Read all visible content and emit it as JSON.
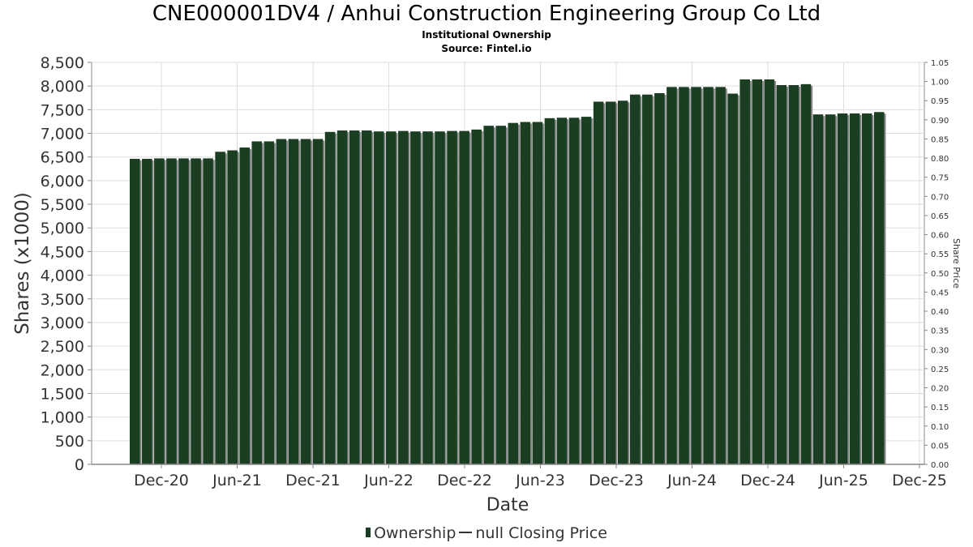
{
  "chart_data": {
    "type": "bar",
    "title": "CNE000001DV4 / Anhui Construction Engineering Group Co Ltd",
    "subtitle": [
      "Institutional Ownership",
      "Source: Fintel.io"
    ],
    "xlabel": "Date",
    "ylabel": "Shares (x1000)",
    "y2label": "Share Price",
    "ylim": [
      0,
      8500
    ],
    "y2lim": [
      0,
      1.05
    ],
    "yticks": [
      0,
      500,
      1000,
      1500,
      2000,
      2500,
      3000,
      3500,
      4000,
      4500,
      5000,
      5500,
      6000,
      6500,
      7000,
      7500,
      8000,
      8500
    ],
    "ytick_labels": [
      "0",
      "500",
      "1,000",
      "1,500",
      "2,000",
      "2,500",
      "3,000",
      "3,500",
      "4,000",
      "4,500",
      "5,000",
      "5,500",
      "6,000",
      "6,500",
      "7,000",
      "7,500",
      "8,000",
      "8,500"
    ],
    "y2ticks": [
      "0.00",
      "0.05",
      "0.10",
      "0.15",
      "0.20",
      "0.25",
      "0.30",
      "0.35",
      "0.40",
      "0.45",
      "0.50",
      "0.55",
      "0.60",
      "0.65",
      "0.70",
      "0.75",
      "0.80",
      "0.85",
      "0.90",
      "0.95",
      "1.00",
      "1.05"
    ],
    "xticks": [
      "Dec-20",
      "Jun-21",
      "Dec-21",
      "Jun-22",
      "Dec-22",
      "Jun-23",
      "Dec-23",
      "Jun-24",
      "Dec-24",
      "Jun-25",
      "Dec-25"
    ],
    "grid": true,
    "colors": {
      "bar": "#1b3d21",
      "bar_shadow": "#8a8a8a",
      "grid": "#dddddd",
      "axis": "#888888"
    },
    "series": [
      {
        "name": "Ownership",
        "values": [
          6460,
          6460,
          6470,
          6470,
          6470,
          6470,
          6470,
          6610,
          6640,
          6700,
          6830,
          6830,
          6880,
          6880,
          6880,
          6880,
          7030,
          7060,
          7060,
          7060,
          7040,
          7040,
          7050,
          7040,
          7040,
          7040,
          7050,
          7050,
          7080,
          7160,
          7160,
          7220,
          7240,
          7240,
          7320,
          7330,
          7330,
          7350,
          7670,
          7670,
          7690,
          7820,
          7820,
          7850,
          7980,
          7980,
          7980,
          7980,
          7980,
          7840,
          8140,
          8140,
          8140,
          8020,
          8020,
          8040,
          7400,
          7400,
          7420,
          7420,
          7420,
          7450
        ]
      }
    ],
    "legend": {
      "position": "bottom-center",
      "items": [
        "Ownership",
        "null Closing Price"
      ]
    }
  }
}
